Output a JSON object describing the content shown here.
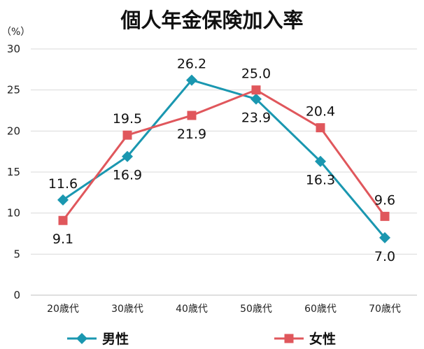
{
  "chart_data": {
    "type": "line",
    "title": "個人年金保険加入率",
    "unit_label": "（%）",
    "categories": [
      "20歳代",
      "30歳代",
      "40歳代",
      "50歳代",
      "60歳代",
      "70歳代"
    ],
    "ylim": [
      0,
      30
    ],
    "yticks": [
      "0",
      "5",
      "10",
      "15",
      "20",
      "25",
      "30"
    ],
    "grid": true,
    "legend_position": "bottom",
    "series": [
      {
        "name": "男性",
        "values": [
          11.6,
          16.9,
          26.2,
          23.9,
          16.3,
          7.0
        ],
        "labels": [
          "11.6",
          "16.9",
          "26.2",
          "23.9",
          "16.3",
          "7.0"
        ],
        "label_side": [
          "above",
          "below",
          "above",
          "below",
          "below",
          "below"
        ],
        "color": "#1a97b0",
        "marker": "diamond"
      },
      {
        "name": "女性",
        "values": [
          9.1,
          19.5,
          21.9,
          25.0,
          20.4,
          9.6
        ],
        "labels": [
          "9.1",
          "19.5",
          "21.9",
          "25.0",
          "20.4",
          "9.6"
        ],
        "label_side": [
          "below",
          "above",
          "below",
          "above",
          "above",
          "above"
        ],
        "color": "#e0575c",
        "marker": "square"
      }
    ]
  }
}
